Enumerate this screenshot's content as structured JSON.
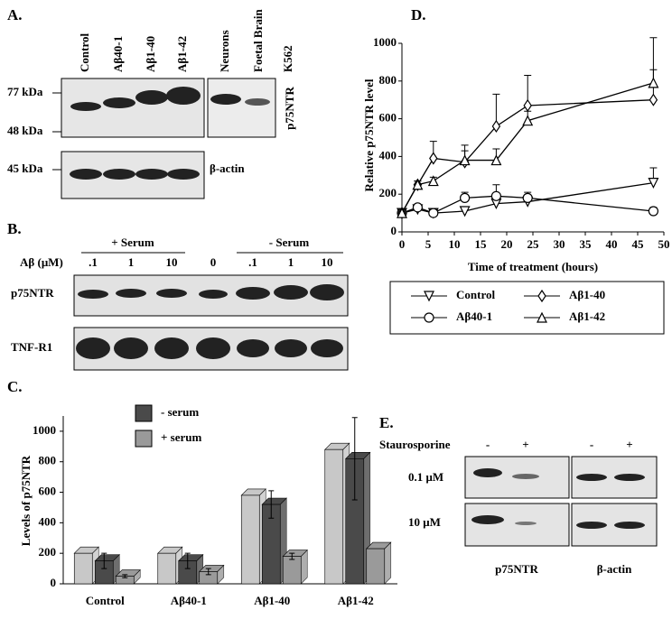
{
  "panels": {
    "a": {
      "label": "A.",
      "lanes": [
        "Control",
        "Aβ40-1",
        "Aβ1-40",
        "Aβ1-42",
        "Neurons",
        "Foetal Brain",
        "K562"
      ],
      "markers": [
        "77 kDa",
        "48 kDa",
        "45 kDa"
      ],
      "blots": [
        "p75NTR",
        "β-actin"
      ]
    },
    "b": {
      "label": "B.",
      "groups": [
        "+ Serum",
        "- Serum"
      ],
      "dose_label": "Aβ (μM)",
      "doses": [
        ".1",
        "1",
        "10",
        "0",
        ".1",
        "1",
        "10"
      ],
      "rows": [
        "p75NTR",
        "TNF-R1"
      ]
    },
    "e": {
      "label": "E.",
      "treatment": "Staurosporine",
      "signs": [
        "-",
        "+",
        "-",
        "+"
      ],
      "rows": [
        "0.1 μM",
        "10 μM"
      ],
      "cols": [
        "p75NTR",
        "β-actin"
      ]
    }
  },
  "chart_data": [
    {
      "type": "bar",
      "label": "C.",
      "ylabel": "Levels of p75NTR",
      "categories": [
        "Control",
        "Aβ40-1",
        "Aβ1-40",
        "Aβ1-42"
      ],
      "series": [
        {
          "color": "#c8c8c8",
          "values": [
            200,
            200,
            580,
            880
          ]
        },
        {
          "name": "- serum",
          "color": "#4a4a4a",
          "values": [
            150,
            150,
            520,
            820
          ],
          "errors": [
            50,
            50,
            90,
            270
          ]
        },
        {
          "name": "+ serum",
          "color": "#9a9a9a",
          "values": [
            50,
            80,
            180,
            230
          ],
          "errors": [
            10,
            20,
            20,
            null
          ]
        }
      ],
      "ylim": [
        0,
        1100
      ],
      "yticks": [
        0,
        200,
        400,
        600,
        800,
        1000
      ]
    },
    {
      "type": "line",
      "label": "D.",
      "xlabel": "Time of treatment (hours)",
      "ylabel": "Relative p75NTR level",
      "x": [
        0,
        3,
        6,
        12,
        18,
        24,
        48
      ],
      "series": [
        {
          "name": "Control",
          "marker": "triangle-down",
          "values": [
            100,
            120,
            100,
            110,
            150,
            160,
            260
          ],
          "errors": [
            10,
            10,
            10,
            10,
            10,
            20,
            80
          ]
        },
        {
          "name": "Aβ40-1",
          "marker": "circle",
          "values": [
            100,
            130,
            100,
            180,
            190,
            180,
            110
          ],
          "errors": [
            10,
            10,
            10,
            30,
            60,
            30,
            20
          ]
        },
        {
          "name": "Aβ1-40",
          "marker": "diamond",
          "values": [
            100,
            250,
            390,
            370,
            560,
            670,
            700
          ],
          "errors": [
            10,
            20,
            90,
            60,
            170,
            160,
            160
          ]
        },
        {
          "name": "Aβ1-42",
          "marker": "triangle-up",
          "values": [
            100,
            250,
            270,
            380,
            380,
            590,
            790
          ],
          "errors": [
            10,
            20,
            20,
            80,
            60,
            50,
            240
          ]
        }
      ],
      "color": "#000000",
      "xlim": [
        0,
        50
      ],
      "xticks": [
        0,
        5,
        10,
        15,
        20,
        25,
        30,
        35,
        40,
        45,
        50
      ],
      "ylim": [
        0,
        1000
      ],
      "yticks": [
        0,
        200,
        400,
        600,
        800,
        1000
      ]
    }
  ]
}
